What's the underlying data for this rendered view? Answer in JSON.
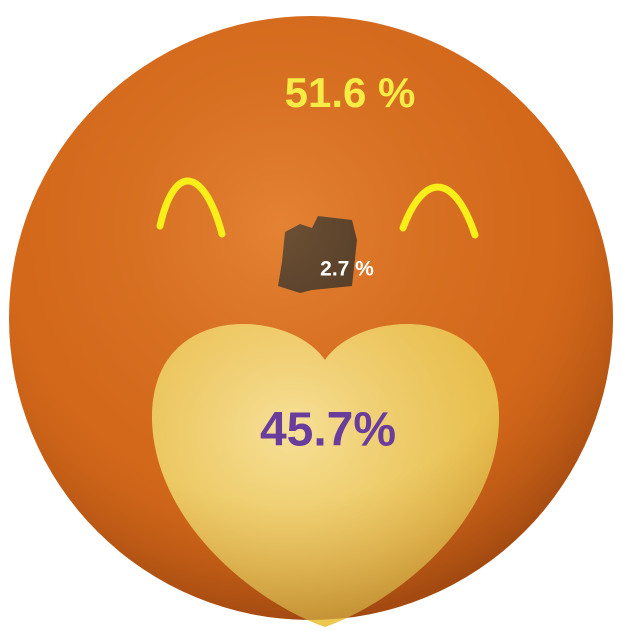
{
  "chart_data": {
    "type": "pictorial",
    "values": [
      51.6,
      2.7,
      45.7
    ],
    "value_labels": [
      "51.6 %",
      "2.7 %",
      "45.7%"
    ],
    "colors": [
      "#d66a1c",
      "#1e1e1e",
      "#f2d55e"
    ],
    "label_colors": [
      "#f6ec45",
      "#ffffff",
      "#6a3c9c"
    ]
  }
}
